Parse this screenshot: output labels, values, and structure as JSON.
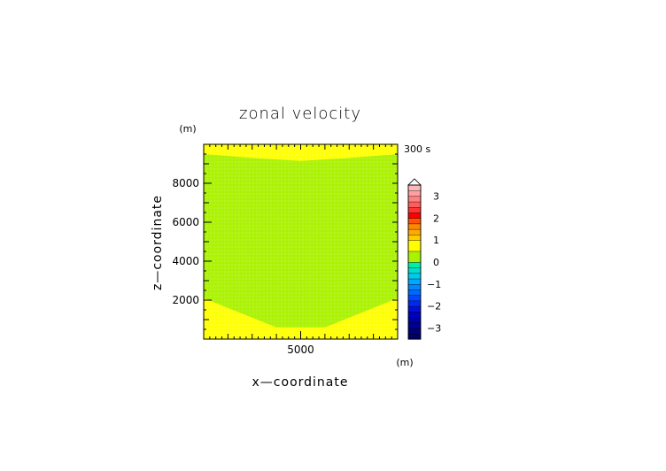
{
  "chart_data": {
    "type": "heatmap",
    "title": "zonal velocity",
    "xlabel": "x—coordinate",
    "ylabel": "z—coordinate",
    "x_unit": "(m)",
    "y_unit": "(m)",
    "time_label": "300 s",
    "xlim": [
      1000,
      9000
    ],
    "ylim": [
      0,
      10000
    ],
    "x_ticks": [
      5000
    ],
    "x_tick_labels": [
      "5000"
    ],
    "y_ticks": [
      2000,
      4000,
      6000,
      8000
    ],
    "y_tick_labels": [
      "2000",
      "4000",
      "6000",
      "8000"
    ],
    "fill_colors": {
      "background": "#ffff00",
      "region_0_to_0_5": "#aaf200"
    },
    "region_0_to_0_5": {
      "top_boundary": {
        "x": [
          1000,
          3000,
          5000,
          7000,
          9000
        ],
        "z": [
          9500,
          9300,
          9150,
          9300,
          9500
        ]
      },
      "bottom_boundary": {
        "x": [
          1000,
          4000,
          6000,
          9000
        ],
        "z": [
          2100,
          600,
          600,
          2100
        ]
      }
    },
    "colorbar": {
      "levels": [
        -3.5,
        -3.25,
        -3,
        -2.75,
        -2.5,
        -2.25,
        -2,
        -1.75,
        -1.5,
        -1.25,
        -1,
        -0.75,
        -0.5,
        -0.25,
        0,
        0.5,
        1,
        1.25,
        1.5,
        1.75,
        2,
        2.25,
        2.5,
        2.75,
        3,
        3.25,
        3.5
      ],
      "colors": [
        "#000066",
        "#00007a",
        "#000090",
        "#0000a8",
        "#0000c0",
        "#0010d8",
        "#0028ee",
        "#0048ff",
        "#0068ff",
        "#0088ff",
        "#00a8ff",
        "#00c8ee",
        "#00ddcc",
        "#00eeaa",
        "#aaf200",
        "#ffff00",
        "#ffcc00",
        "#ffaa00",
        "#ff8800",
        "#ff5500",
        "#ff0000",
        "#ff3333",
        "#ff5c5c",
        "#ff8080",
        "#ffa0a0",
        "#ffb8b8"
      ],
      "extend": "max",
      "tick_values": [
        -3,
        -2,
        -1,
        0,
        1,
        2,
        3
      ],
      "tick_labels": [
        "−3",
        "−2",
        "−1",
        "0",
        "1",
        "2",
        "3"
      ]
    }
  }
}
